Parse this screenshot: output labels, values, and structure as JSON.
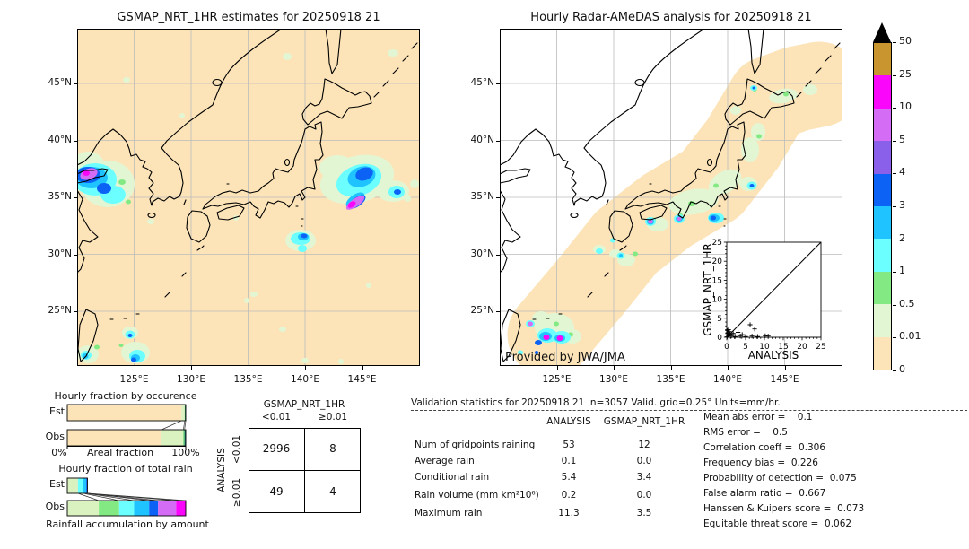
{
  "left_map": {
    "title": "GSMAP_NRT_1HR estimates for 20250918 21",
    "xticks": [
      "125°E",
      "130°E",
      "135°E",
      "140°E",
      "145°E"
    ],
    "yticks": [
      "45°N",
      "40°N",
      "35°N",
      "30°N",
      "25°N"
    ]
  },
  "right_map": {
    "title": "Hourly Radar-AMeDAS analysis for 20250918 21",
    "xticks": [
      "125°E",
      "130°E",
      "135°E",
      "140°E",
      "145°E"
    ],
    "yticks": [
      "45°N",
      "40°N",
      "35°N",
      "30°N",
      "25°N"
    ],
    "credit": "Provided by JWA/JMA"
  },
  "colorbar": {
    "tick_labels": [
      "50",
      "25",
      "10",
      "5",
      "4",
      "3",
      "2",
      "1",
      "0.5",
      "0.01",
      "0"
    ],
    "colors_top_to_bottom": [
      "#c9952f",
      "#fa06fa",
      "#d46cf5",
      "#8a60ea",
      "#0b62f5",
      "#1fc3ff",
      "#6cffff",
      "#83ea83",
      "#e3f6d3",
      "#fce4b8"
    ],
    "over_color": "#000000"
  },
  "chart_data": [
    {
      "id": "hourly-fraction-by-occurrence",
      "type": "bar",
      "title": "Hourly fraction by occurence",
      "categories": [
        "Est",
        "Obs"
      ],
      "xlabel": "Areal fraction",
      "xmin_label": "0%",
      "xmax_label": "100%",
      "segments": {
        "Est": [
          {
            "color": "#fce4b8",
            "pct": 96.4
          },
          {
            "color": "#d9f2c0",
            "pct": 2.8
          },
          {
            "color": "#2d8a57",
            "pct": 0.8
          }
        ],
        "Obs": [
          {
            "color": "#fce4b8",
            "pct": 79.6
          },
          {
            "color": "#d9f2c0",
            "pct": 18.4
          },
          {
            "color": "#5fd06a",
            "pct": 1.0
          },
          {
            "color": "#17706b",
            "pct": 1.0
          }
        ]
      }
    },
    {
      "id": "hourly-fraction-of-total-rain",
      "type": "bar",
      "title": "Hourly fraction of total rain",
      "categories": [
        "Est",
        "Obs"
      ],
      "xlabel": "Rainfall accumulation by amount",
      "segments": {
        "Est": [
          {
            "color": "#d9f2c0",
            "pct": 9.0
          },
          {
            "color": "#6cffff",
            "pct": 4.5
          },
          {
            "color": "#1fc3ff",
            "pct": 2.5
          },
          {
            "color": "#0b62f5",
            "pct": 1.0
          }
        ],
        "Obs": [
          {
            "color": "#d9f2c0",
            "pct": 26.6
          },
          {
            "color": "#83ea83",
            "pct": 17.2
          },
          {
            "color": "#6cffff",
            "pct": 12.6
          },
          {
            "color": "#1fc3ff",
            "pct": 12.7
          },
          {
            "color": "#0b62f5",
            "pct": 7.6
          },
          {
            "color": "#d46cf5",
            "pct": 15.2
          },
          {
            "color": "#fa06fa",
            "pct": 8.1
          }
        ]
      }
    },
    {
      "id": "gsmap-vs-analysis-scatter",
      "type": "scatter",
      "xlabel": "ANALYSIS",
      "ylabel": "GSMAP_NRT_1HR",
      "xlim": [
        0,
        25
      ],
      "ylim": [
        0,
        25
      ],
      "ticks": [
        0,
        5,
        10,
        15,
        20,
        25
      ],
      "diagonal": true,
      "points": [
        [
          0.1,
          0.1
        ],
        [
          0.2,
          0.6
        ],
        [
          0.2,
          1.8
        ],
        [
          0.3,
          1.2
        ],
        [
          0.4,
          0.5
        ],
        [
          0.5,
          2.0
        ],
        [
          0.7,
          1.5
        ],
        [
          0.9,
          0.8
        ],
        [
          1.2,
          0.3
        ],
        [
          1.7,
          1.0
        ],
        [
          2.2,
          0.2
        ],
        [
          3.0,
          1.3
        ],
        [
          3.6,
          0.3
        ],
        [
          4.1,
          0.7
        ],
        [
          5.0,
          0.2
        ],
        [
          6.2,
          3.3
        ],
        [
          6.7,
          0.3
        ],
        [
          7.4,
          2.2
        ],
        [
          8.2,
          0.2
        ],
        [
          10.2,
          0.4
        ],
        [
          11.0,
          0.3
        ]
      ]
    },
    {
      "id": "contingency-table",
      "type": "table",
      "col_title": "GSMAP_NRT_1HR",
      "row_title": "ANALYSIS",
      "cols": [
        "<0.01",
        "≥0.01"
      ],
      "rows": [
        "<0.01",
        "≥0.01"
      ],
      "values": [
        [
          "2996",
          "8"
        ],
        [
          "49",
          "4"
        ]
      ]
    },
    {
      "id": "validation-statistics",
      "type": "table",
      "title": "Validation statistics for 20250918 21  n=3057 Valid. grid=0.25° Units=mm/hr.",
      "cols": [
        "ANALYSIS",
        "GSMAP_NRT_1HR"
      ],
      "rows": [
        {
          "label": "Num of gridpoints raining",
          "analysis": "53",
          "gsmap": "12"
        },
        {
          "label": "Average rain",
          "analysis": "0.1",
          "gsmap": "0.0"
        },
        {
          "label": "Conditional rain",
          "analysis": "5.4",
          "gsmap": "3.4"
        },
        {
          "label": "Rain volume (mm km²10⁶)",
          "analysis": "0.2",
          "gsmap": "0.0"
        },
        {
          "label": "Maximum rain",
          "analysis": "11.3",
          "gsmap": "3.5"
        }
      ]
    }
  ],
  "stats_right": [
    "Mean abs error =    0.1",
    "RMS error =    0.5",
    "Correlation coeff =  0.306",
    "Frequency bias =  0.226",
    "Probability of detection =  0.075",
    "False alarm ratio =  0.667",
    "Hanssen & Kuipers score =  0.073",
    "Equitable threat score =  0.062"
  ]
}
